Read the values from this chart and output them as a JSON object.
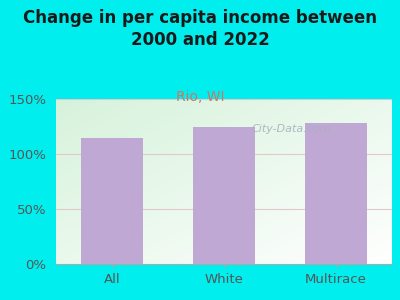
{
  "categories": [
    "All",
    "White",
    "Multirace"
  ],
  "values": [
    115,
    125,
    128
  ],
  "bar_color": "#c0a8d4",
  "title": "Change in per capita income between\n2000 and 2022",
  "subtitle": "Rio, WI",
  "title_fontsize": 12,
  "subtitle_fontsize": 10,
  "ylim": [
    0,
    150
  ],
  "yticks": [
    0,
    50,
    100,
    150
  ],
  "ytick_labels": [
    "0%",
    "50%",
    "100%",
    "150%"
  ],
  "background_color": "#00EEEE",
  "plot_bg_top_left": "#d8eedd",
  "plot_bg_bottom_right": "#f8fff8",
  "title_color": "#1a1a1a",
  "subtitle_color": "#cc7766",
  "tick_color": "#555555",
  "grid_color": "#e0c8cc",
  "watermark_text": "City-Data.com",
  "watermark_color": "#aab0c0",
  "bar_width": 0.55
}
